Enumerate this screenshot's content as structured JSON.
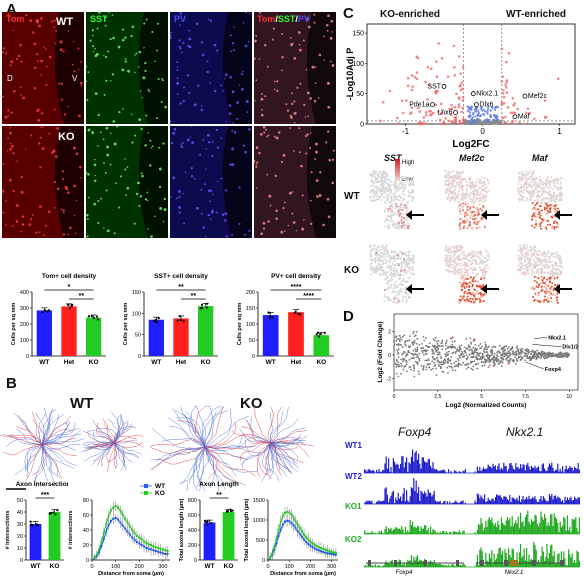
{
  "panels": {
    "A": "A",
    "B": "B",
    "C": "C",
    "D": "D"
  },
  "panelA": {
    "channels": [
      {
        "label": "Tom",
        "color": "#ff2a2a"
      },
      {
        "label": "SST",
        "color": "#2aff2a"
      },
      {
        "label": "PV",
        "color": "#4a4aff"
      }
    ],
    "merge": {
      "tom": "Tom",
      "slash1": "/",
      "sst": "SST",
      "slash2": "/",
      "pv": "PV"
    },
    "wt": "WT",
    "ko": "KO",
    "d": "D",
    "v": "V"
  },
  "chart_data": [
    {
      "type": "bar",
      "title": "Tom+ cell density",
      "ylabel": "Cells per sq mm",
      "categories": [
        "WT",
        "Het",
        "KO"
      ],
      "values": [
        285,
        310,
        240
      ],
      "colors": [
        "#1f1fff",
        "#ff1f1f",
        "#22cc22"
      ],
      "ylim": [
        0,
        400
      ],
      "yticks": [
        0,
        100,
        200,
        300,
        400
      ],
      "sig": [
        {
          "from": 0,
          "to": 2,
          "label": "*"
        },
        {
          "from": 1,
          "to": 2,
          "label": "**"
        }
      ]
    },
    {
      "type": "bar",
      "title": "SST+ cell density",
      "ylabel": "Cells per sq mm",
      "categories": [
        "WT",
        "Het",
        "KO"
      ],
      "values": [
        85,
        88,
        117
      ],
      "colors": [
        "#1f1fff",
        "#ff1f1f",
        "#22cc22"
      ],
      "ylim": [
        0,
        150
      ],
      "yticks": [
        0,
        50,
        100,
        150
      ],
      "sig": [
        {
          "from": 0,
          "to": 2,
          "label": "**"
        },
        {
          "from": 1,
          "to": 2,
          "label": "**"
        }
      ]
    },
    {
      "type": "bar",
      "title": "PV+ cell density",
      "ylabel": "Cells per sq mm",
      "categories": [
        "WT",
        "Het",
        "KO"
      ],
      "values": [
        128,
        137,
        65
      ],
      "colors": [
        "#1f1fff",
        "#ff1f1f",
        "#22cc22"
      ],
      "ylim": [
        0,
        200
      ],
      "yticks": [
        0,
        50,
        100,
        150,
        200
      ],
      "sig": [
        {
          "from": 0,
          "to": 2,
          "label": "****"
        },
        {
          "from": 1,
          "to": 2,
          "label": "****"
        }
      ]
    },
    {
      "type": "bar",
      "title": "Axon Intersections",
      "ylabel": "# intersections",
      "categories": [
        "WT",
        "KO"
      ],
      "values": [
        30,
        40
      ],
      "colors": [
        "#1f1fff",
        "#22cc22"
      ],
      "ylim": [
        0,
        50
      ],
      "yticks": [
        0,
        10,
        20,
        30,
        40,
        50
      ],
      "sig": [
        {
          "from": 0,
          "to": 1,
          "label": "***"
        }
      ]
    },
    {
      "type": "line",
      "ylabel": "# intersections",
      "xlabel": "Distance from soma (µm)",
      "xlim": [
        0,
        330
      ],
      "ylim": [
        0,
        80
      ],
      "xticks": [
        0,
        100,
        200,
        300
      ],
      "yticks": [
        0,
        20,
        40,
        60,
        80
      ],
      "legend": [
        "WT",
        "KO"
      ],
      "x": [
        10,
        20,
        30,
        40,
        50,
        60,
        70,
        80,
        90,
        100,
        110,
        120,
        130,
        140,
        150,
        160,
        170,
        180,
        190,
        200,
        210,
        220,
        230,
        240,
        250,
        260,
        270,
        280,
        290,
        300,
        310,
        320
      ],
      "series": [
        {
          "name": "WT",
          "color": "#1f5fff",
          "values": [
            2,
            5,
            10,
            18,
            28,
            38,
            46,
            52,
            55,
            56,
            54,
            50,
            46,
            42,
            38,
            34,
            30,
            27,
            24,
            22,
            20,
            18,
            16,
            15,
            14,
            13,
            12,
            11,
            10,
            9,
            8,
            8
          ]
        },
        {
          "name": "KO",
          "color": "#22cc22",
          "values": [
            3,
            7,
            14,
            24,
            36,
            48,
            58,
            66,
            70,
            72,
            70,
            66,
            60,
            55,
            50,
            45,
            40,
            36,
            32,
            30,
            28,
            25,
            23,
            21,
            20,
            18,
            17,
            16,
            15,
            14,
            13,
            12
          ]
        }
      ]
    },
    {
      "type": "bar",
      "title": "Axon Length",
      "ylabel": "Total axonal length (µm)",
      "categories": [
        "WT",
        "KO"
      ],
      "values": [
        500,
        640
      ],
      "colors": [
        "#1f1fff",
        "#22cc22"
      ],
      "ylim": [
        0,
        800
      ],
      "yticks": [
        0,
        200,
        400,
        600,
        800
      ],
      "sig": [
        {
          "from": 0,
          "to": 1,
          "label": "**"
        }
      ]
    },
    {
      "type": "line",
      "ylabel": "Total axonal length (µm)",
      "xlabel": "Distance from soma (µm)",
      "xlim": [
        0,
        330
      ],
      "ylim": [
        0,
        1500
      ],
      "xticks": [
        0,
        100,
        200,
        300
      ],
      "yticks": [
        0,
        500,
        1000,
        1500
      ],
      "x": [
        10,
        20,
        30,
        40,
        50,
        60,
        70,
        80,
        90,
        100,
        110,
        120,
        130,
        140,
        150,
        160,
        170,
        180,
        190,
        200,
        210,
        220,
        230,
        240,
        250,
        260,
        270,
        280,
        290,
        300,
        310,
        320
      ],
      "series": [
        {
          "name": "WT",
          "color": "#1f5fff",
          "values": [
            40,
            120,
            250,
            420,
            600,
            760,
            880,
            960,
            980,
            970,
            930,
            870,
            800,
            720,
            650,
            580,
            510,
            450,
            400,
            360,
            320,
            290,
            260,
            240,
            220,
            200,
            180,
            170,
            160,
            150,
            140,
            130
          ]
        },
        {
          "name": "KO",
          "color": "#22cc22",
          "values": [
            50,
            160,
            330,
            540,
            760,
            960,
            1100,
            1180,
            1200,
            1190,
            1140,
            1060,
            970,
            880,
            800,
            720,
            640,
            570,
            510,
            460,
            420,
            380,
            350,
            320,
            300,
            280,
            260,
            240,
            220,
            200,
            190,
            180
          ]
        }
      ]
    },
    {
      "type": "scatter",
      "ylabel": "-Log10Adj P",
      "xlabel": "Log2FC",
      "xlim": [
        -1.5,
        1.2
      ],
      "ylim": [
        0,
        165
      ],
      "xticks": [
        -1,
        0,
        1
      ],
      "yticks": [
        0,
        50,
        100,
        150
      ],
      "labels": [
        "SST",
        "Nkx2.1",
        "Pde1a",
        "Dlx6",
        "Lhx6",
        "Mef2c",
        "Maf"
      ]
    },
    {
      "type": "scatter",
      "ylabel": "Log2 (Fold Change)",
      "xlabel": "Log2 (Normalized Counts)",
      "xlim": [
        0,
        10.5
      ],
      "ylim": [
        -3,
        3.5
      ],
      "xticks": [
        0,
        2.5,
        5,
        7.5,
        10
      ],
      "yticks": [
        -2,
        0,
        2
      ],
      "labels": [
        "Nkx2.1",
        "Dlx1/2",
        "Foxp4"
      ]
    }
  ],
  "panelB": {
    "wt": "WT",
    "ko": "KO"
  },
  "panelC": {
    "ko_enriched": "KO-enriched",
    "wt_enriched": "WT-enriched",
    "umap_titles": [
      "SST",
      "Mef2c",
      "Maf"
    ],
    "rows": [
      "WT",
      "KO"
    ],
    "high": "High",
    "low": "Low"
  },
  "panelD": {
    "genes": [
      "Foxp4",
      "Nkx2.1"
    ],
    "tracks": [
      {
        "label": "WT1",
        "color": "#1f1fcc"
      },
      {
        "label": "WT2",
        "color": "#1f1fcc"
      },
      {
        "label": "KO1",
        "color": "#22aa22"
      },
      {
        "label": "KO2",
        "color": "#22aa22"
      }
    ],
    "gene_labels": [
      "Foxp4",
      "Nkx2.1"
    ]
  }
}
